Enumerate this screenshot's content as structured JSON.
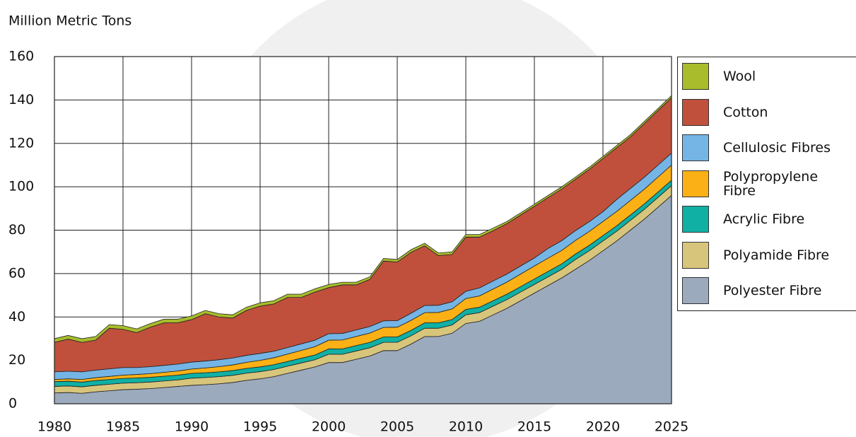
{
  "chart_data": {
    "type": "stacked-area",
    "title": "Million Metric Tons",
    "x": [
      1980,
      1981,
      1982,
      1983,
      1984,
      1985,
      1986,
      1987,
      1988,
      1989,
      1990,
      1991,
      1992,
      1993,
      1994,
      1995,
      1996,
      1997,
      1998,
      1999,
      2000,
      2001,
      2002,
      2003,
      2004,
      2005,
      2006,
      2007,
      2008,
      2009,
      2010,
      2011,
      2012,
      2013,
      2014,
      2015,
      2016,
      2017,
      2018,
      2019,
      2020,
      2021,
      2022,
      2023,
      2024,
      2025
    ],
    "xlim": [
      1980,
      2025
    ],
    "xticks": [
      1980,
      1985,
      1990,
      1995,
      2000,
      2005,
      2010,
      2015,
      2020,
      2025
    ],
    "ylim": [
      0,
      160
    ],
    "yticks": [
      0,
      20,
      40,
      60,
      80,
      100,
      120,
      140,
      160
    ],
    "grid": true,
    "series": [
      {
        "name": "Polyester Fibre",
        "color": "#9caabd",
        "values": [
          5,
          5.2,
          4.8,
          5.5,
          6,
          6.5,
          6.7,
          7,
          7.5,
          8,
          8.5,
          8.8,
          9.2,
          9.8,
          10.8,
          11.5,
          12.5,
          14,
          15.5,
          17,
          19,
          19,
          20.5,
          22,
          24.5,
          24.5,
          27.5,
          31,
          31,
          32.5,
          37,
          38,
          41,
          44,
          47.5,
          51,
          54.5,
          58,
          62,
          66,
          70.5,
          75,
          80,
          85,
          90.5,
          96
        ]
      },
      {
        "name": "Polyamide Fibre",
        "color": "#d8c57c",
        "values": [
          3,
          3,
          3,
          3,
          3,
          3,
          3,
          3,
          3,
          3,
          3.3,
          3.3,
          3.3,
          3.3,
          3.3,
          3.3,
          3.3,
          3.3,
          3.3,
          3.3,
          3.8,
          3.8,
          3.8,
          3.8,
          3.8,
          3.8,
          3.8,
          3.8,
          3.8,
          3.8,
          4,
          4,
          4,
          4,
          4,
          4,
          4,
          4,
          4.5,
          4.5,
          4.5,
          4.5,
          4.5,
          4.5,
          4.5,
          4.5
        ]
      },
      {
        "name": "Acrylic Fibre",
        "color": "#10b0a4",
        "values": [
          2.2,
          2.2,
          2.2,
          2.2,
          2.2,
          2.2,
          2.2,
          2.2,
          2.2,
          2.2,
          2.2,
          2.2,
          2.2,
          2.2,
          2.2,
          2.2,
          2.2,
          2.2,
          2.2,
          2.2,
          2.5,
          2.5,
          2.5,
          2.5,
          2.5,
          2.5,
          2.5,
          2.5,
          2.5,
          2.5,
          2.5,
          2.5,
          2.5,
          2.5,
          2.5,
          2.5,
          2.5,
          2.5,
          2.5,
          2.5,
          2.5,
          2.5,
          2.5,
          2.5,
          2.5,
          2.5
        ]
      },
      {
        "name": "Polypropylene Fibre",
        "color": "#fbb015",
        "values": [
          1,
          1.1,
          1.2,
          1.3,
          1.4,
          1.5,
          1.6,
          1.7,
          1.8,
          1.9,
          2,
          2.2,
          2.4,
          2.6,
          2.8,
          3,
          3.2,
          3.4,
          3.6,
          3.8,
          4,
          4.1,
          4.2,
          4.3,
          4.4,
          4.5,
          4.6,
          4.7,
          4.8,
          4.9,
          5,
          5.2,
          5.4,
          5.6,
          5.8,
          6,
          6.1,
          6.2,
          6.3,
          6.4,
          6.5,
          6.6,
          6.7,
          6.8,
          6.9,
          7
        ]
      },
      {
        "name": "Cellulosic Fibres",
        "color": "#74b5e5",
        "values": [
          3.5,
          3.5,
          3.5,
          3.5,
          3.5,
          3.5,
          3.2,
          3.2,
          3.2,
          3.2,
          3.2,
          3.2,
          3.2,
          3.2,
          3.2,
          3.2,
          3,
          3,
          3,
          3,
          3,
          3,
          3,
          3,
          3,
          3,
          3.3,
          3.3,
          3.3,
          3.3,
          3.3,
          3.7,
          3.7,
          3.7,
          3.7,
          3.7,
          4.5,
          4.5,
          4.5,
          4.5,
          4.5,
          5.5,
          5.5,
          5.5,
          5.5,
          5.5
        ]
      },
      {
        "name": "Cotton",
        "color": "#c0503c",
        "values": [
          13.6,
          14.8,
          13.6,
          13.8,
          18.7,
          17.6,
          16.1,
          18.2,
          19.6,
          19,
          19.6,
          21.8,
          19.7,
          18.4,
          20.7,
          21.8,
          21.8,
          23.1,
          21.4,
          22.2,
          21.2,
          22.4,
          20.8,
          21.7,
          27.6,
          27,
          28.1,
          27.5,
          22.9,
          21.8,
          25,
          23.4,
          23.2,
          23.2,
          23.5,
          23.8,
          23.4,
          23.8,
          23.7,
          24.1,
          24.5,
          23.9,
          23.8,
          24.7,
          25.1,
          25.5
        ]
      },
      {
        "name": "Wool",
        "color": "#a8bc2c",
        "values": [
          1.7,
          1.7,
          1.7,
          1.7,
          1.7,
          1.7,
          1.7,
          1.7,
          1.7,
          1.7,
          1.7,
          1.5,
          1.5,
          1.5,
          1.5,
          1.5,
          1.5,
          1.5,
          1.5,
          1.5,
          1.5,
          1.2,
          1.2,
          1.2,
          1.2,
          1.2,
          1.2,
          1.2,
          1.2,
          1.2,
          1.2,
          1.2,
          1.2,
          1,
          1,
          1,
          1,
          1,
          1,
          1,
          1,
          1,
          1,
          1,
          1,
          1
        ]
      }
    ]
  }
}
